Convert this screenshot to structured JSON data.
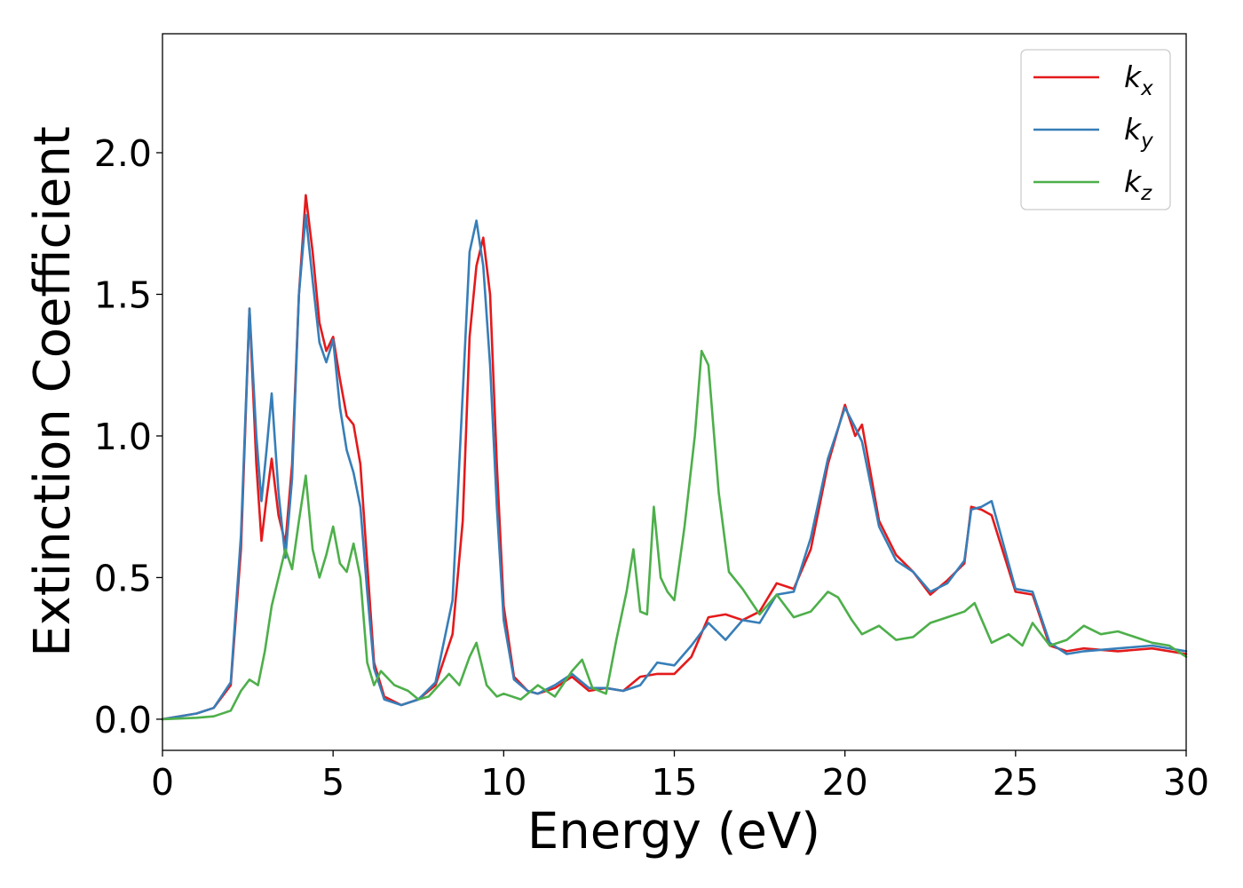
{
  "chart_data": {
    "type": "line",
    "title": "",
    "xlabel": "Energy (eV)",
    "ylabel": "Extinction Coefficient",
    "xlim": [
      0,
      30
    ],
    "ylim": [
      -0.11,
      2.42
    ],
    "x_ticks": [
      0,
      5,
      10,
      15,
      20,
      25,
      30
    ],
    "x_tick_labels": [
      "0",
      "5",
      "10",
      "15",
      "20",
      "25",
      "30"
    ],
    "y_ticks": [
      0.0,
      0.5,
      1.0,
      1.5,
      2.0
    ],
    "y_tick_labels": [
      "0.0",
      "0.5",
      "1.0",
      "1.5",
      "2.0"
    ],
    "grid": false,
    "legend_position": "top-right",
    "series": [
      {
        "name": "kx",
        "label_main": "k",
        "label_sub": "x",
        "color": "#e41a1c",
        "points": [
          [
            0,
            0
          ],
          [
            1,
            0.02
          ],
          [
            1.5,
            0.04
          ],
          [
            2.0,
            0.12
          ],
          [
            2.3,
            0.6
          ],
          [
            2.55,
            1.45
          ],
          [
            2.75,
            0.9
          ],
          [
            2.9,
            0.63
          ],
          [
            3.05,
            0.78
          ],
          [
            3.2,
            0.92
          ],
          [
            3.4,
            0.72
          ],
          [
            3.6,
            0.62
          ],
          [
            3.8,
            0.9
          ],
          [
            4.0,
            1.5
          ],
          [
            4.2,
            1.85
          ],
          [
            4.4,
            1.65
          ],
          [
            4.6,
            1.4
          ],
          [
            4.8,
            1.3
          ],
          [
            5.0,
            1.35
          ],
          [
            5.2,
            1.2
          ],
          [
            5.4,
            1.07
          ],
          [
            5.6,
            1.04
          ],
          [
            5.8,
            0.9
          ],
          [
            6.0,
            0.55
          ],
          [
            6.2,
            0.2
          ],
          [
            6.5,
            0.08
          ],
          [
            7.0,
            0.05
          ],
          [
            7.5,
            0.07
          ],
          [
            8.0,
            0.12
          ],
          [
            8.5,
            0.3
          ],
          [
            8.8,
            0.7
          ],
          [
            9.0,
            1.35
          ],
          [
            9.2,
            1.6
          ],
          [
            9.4,
            1.7
          ],
          [
            9.6,
            1.5
          ],
          [
            9.8,
            0.9
          ],
          [
            10.0,
            0.4
          ],
          [
            10.3,
            0.15
          ],
          [
            10.7,
            0.1
          ],
          [
            11.0,
            0.09
          ],
          [
            11.5,
            0.11
          ],
          [
            12.0,
            0.15
          ],
          [
            12.5,
            0.1
          ],
          [
            13.0,
            0.11
          ],
          [
            13.5,
            0.1
          ],
          [
            14.0,
            0.15
          ],
          [
            14.5,
            0.16
          ],
          [
            15.0,
            0.16
          ],
          [
            15.5,
            0.22
          ],
          [
            16.0,
            0.36
          ],
          [
            16.5,
            0.37
          ],
          [
            17.0,
            0.35
          ],
          [
            17.5,
            0.38
          ],
          [
            18.0,
            0.48
          ],
          [
            18.5,
            0.46
          ],
          [
            19.0,
            0.6
          ],
          [
            19.5,
            0.9
          ],
          [
            20.0,
            1.11
          ],
          [
            20.3,
            1.0
          ],
          [
            20.5,
            1.04
          ],
          [
            21.0,
            0.7
          ],
          [
            21.5,
            0.58
          ],
          [
            22.0,
            0.52
          ],
          [
            22.5,
            0.44
          ],
          [
            23.0,
            0.49
          ],
          [
            23.5,
            0.55
          ],
          [
            23.7,
            0.75
          ],
          [
            24.0,
            0.74
          ],
          [
            24.3,
            0.72
          ],
          [
            25.0,
            0.45
          ],
          [
            25.5,
            0.44
          ],
          [
            26.0,
            0.26
          ],
          [
            26.5,
            0.24
          ],
          [
            27.0,
            0.25
          ],
          [
            28.0,
            0.24
          ],
          [
            29.0,
            0.25
          ],
          [
            30.0,
            0.23
          ]
        ]
      },
      {
        "name": "ky",
        "label_main": "k",
        "label_sub": "y",
        "color": "#377eb8",
        "points": [
          [
            0,
            0
          ],
          [
            1,
            0.02
          ],
          [
            1.5,
            0.04
          ],
          [
            2.0,
            0.13
          ],
          [
            2.3,
            0.65
          ],
          [
            2.55,
            1.45
          ],
          [
            2.75,
            1.0
          ],
          [
            2.9,
            0.77
          ],
          [
            3.05,
            0.95
          ],
          [
            3.2,
            1.15
          ],
          [
            3.4,
            0.8
          ],
          [
            3.6,
            0.57
          ],
          [
            3.8,
            0.85
          ],
          [
            4.0,
            1.5
          ],
          [
            4.2,
            1.78
          ],
          [
            4.4,
            1.55
          ],
          [
            4.6,
            1.33
          ],
          [
            4.8,
            1.26
          ],
          [
            5.0,
            1.34
          ],
          [
            5.2,
            1.1
          ],
          [
            5.4,
            0.95
          ],
          [
            5.6,
            0.87
          ],
          [
            5.8,
            0.75
          ],
          [
            6.0,
            0.45
          ],
          [
            6.2,
            0.18
          ],
          [
            6.5,
            0.07
          ],
          [
            7.0,
            0.05
          ],
          [
            7.5,
            0.07
          ],
          [
            8.0,
            0.13
          ],
          [
            8.5,
            0.42
          ],
          [
            8.8,
            1.15
          ],
          [
            9.0,
            1.65
          ],
          [
            9.2,
            1.76
          ],
          [
            9.4,
            1.6
          ],
          [
            9.6,
            1.25
          ],
          [
            9.8,
            0.75
          ],
          [
            10.0,
            0.35
          ],
          [
            10.3,
            0.14
          ],
          [
            10.7,
            0.1
          ],
          [
            11.0,
            0.09
          ],
          [
            11.5,
            0.12
          ],
          [
            12.0,
            0.16
          ],
          [
            12.5,
            0.11
          ],
          [
            13.0,
            0.11
          ],
          [
            13.5,
            0.1
          ],
          [
            14.0,
            0.12
          ],
          [
            14.5,
            0.2
          ],
          [
            15.0,
            0.19
          ],
          [
            15.5,
            0.26
          ],
          [
            16.0,
            0.34
          ],
          [
            16.5,
            0.28
          ],
          [
            17.0,
            0.35
          ],
          [
            17.5,
            0.34
          ],
          [
            18.0,
            0.44
          ],
          [
            18.5,
            0.45
          ],
          [
            19.0,
            0.64
          ],
          [
            19.5,
            0.92
          ],
          [
            20.0,
            1.1
          ],
          [
            20.3,
            1.03
          ],
          [
            20.5,
            0.98
          ],
          [
            21.0,
            0.68
          ],
          [
            21.5,
            0.56
          ],
          [
            22.0,
            0.52
          ],
          [
            22.5,
            0.45
          ],
          [
            23.0,
            0.48
          ],
          [
            23.5,
            0.56
          ],
          [
            23.7,
            0.74
          ],
          [
            24.0,
            0.75
          ],
          [
            24.3,
            0.77
          ],
          [
            25.0,
            0.46
          ],
          [
            25.5,
            0.45
          ],
          [
            26.0,
            0.27
          ],
          [
            26.5,
            0.23
          ],
          [
            27.0,
            0.24
          ],
          [
            28.0,
            0.25
          ],
          [
            29.0,
            0.26
          ],
          [
            30.0,
            0.24
          ]
        ]
      },
      {
        "name": "kz",
        "label_main": "k",
        "label_sub": "z",
        "color": "#4daf4a",
        "points": [
          [
            0,
            0
          ],
          [
            1,
            0.005
          ],
          [
            1.5,
            0.01
          ],
          [
            2.0,
            0.03
          ],
          [
            2.3,
            0.1
          ],
          [
            2.55,
            0.14
          ],
          [
            2.8,
            0.12
          ],
          [
            3.0,
            0.24
          ],
          [
            3.2,
            0.4
          ],
          [
            3.4,
            0.5
          ],
          [
            3.6,
            0.6
          ],
          [
            3.8,
            0.53
          ],
          [
            4.0,
            0.7
          ],
          [
            4.2,
            0.86
          ],
          [
            4.4,
            0.6
          ],
          [
            4.6,
            0.5
          ],
          [
            4.8,
            0.58
          ],
          [
            5.0,
            0.68
          ],
          [
            5.2,
            0.55
          ],
          [
            5.4,
            0.52
          ],
          [
            5.6,
            0.62
          ],
          [
            5.8,
            0.5
          ],
          [
            6.0,
            0.2
          ],
          [
            6.2,
            0.12
          ],
          [
            6.4,
            0.17
          ],
          [
            6.8,
            0.12
          ],
          [
            7.2,
            0.1
          ],
          [
            7.5,
            0.07
          ],
          [
            7.8,
            0.08
          ],
          [
            8.1,
            0.12
          ],
          [
            8.4,
            0.16
          ],
          [
            8.7,
            0.12
          ],
          [
            9.0,
            0.22
          ],
          [
            9.2,
            0.27
          ],
          [
            9.5,
            0.12
          ],
          [
            9.8,
            0.08
          ],
          [
            10.0,
            0.09
          ],
          [
            10.5,
            0.07
          ],
          [
            11.0,
            0.12
          ],
          [
            11.5,
            0.08
          ],
          [
            12.0,
            0.17
          ],
          [
            12.3,
            0.21
          ],
          [
            12.6,
            0.11
          ],
          [
            13.0,
            0.09
          ],
          [
            13.3,
            0.28
          ],
          [
            13.6,
            0.45
          ],
          [
            13.8,
            0.6
          ],
          [
            14.0,
            0.38
          ],
          [
            14.2,
            0.37
          ],
          [
            14.4,
            0.75
          ],
          [
            14.6,
            0.5
          ],
          [
            14.8,
            0.45
          ],
          [
            15.0,
            0.42
          ],
          [
            15.3,
            0.68
          ],
          [
            15.6,
            1.0
          ],
          [
            15.8,
            1.3
          ],
          [
            16.0,
            1.25
          ],
          [
            16.3,
            0.8
          ],
          [
            16.6,
            0.52
          ],
          [
            17.0,
            0.46
          ],
          [
            17.5,
            0.37
          ],
          [
            18.0,
            0.44
          ],
          [
            18.5,
            0.36
          ],
          [
            19.0,
            0.38
          ],
          [
            19.5,
            0.45
          ],
          [
            19.8,
            0.43
          ],
          [
            20.2,
            0.35
          ],
          [
            20.5,
            0.3
          ],
          [
            21.0,
            0.33
          ],
          [
            21.5,
            0.28
          ],
          [
            22.0,
            0.29
          ],
          [
            22.5,
            0.34
          ],
          [
            23.0,
            0.36
          ],
          [
            23.5,
            0.38
          ],
          [
            23.8,
            0.41
          ],
          [
            24.3,
            0.27
          ],
          [
            24.8,
            0.3
          ],
          [
            25.2,
            0.26
          ],
          [
            25.5,
            0.34
          ],
          [
            26.0,
            0.26
          ],
          [
            26.5,
            0.28
          ],
          [
            27.0,
            0.33
          ],
          [
            27.5,
            0.3
          ],
          [
            28.0,
            0.31
          ],
          [
            28.5,
            0.29
          ],
          [
            29.0,
            0.27
          ],
          [
            29.5,
            0.26
          ],
          [
            30.0,
            0.22
          ]
        ]
      }
    ]
  }
}
